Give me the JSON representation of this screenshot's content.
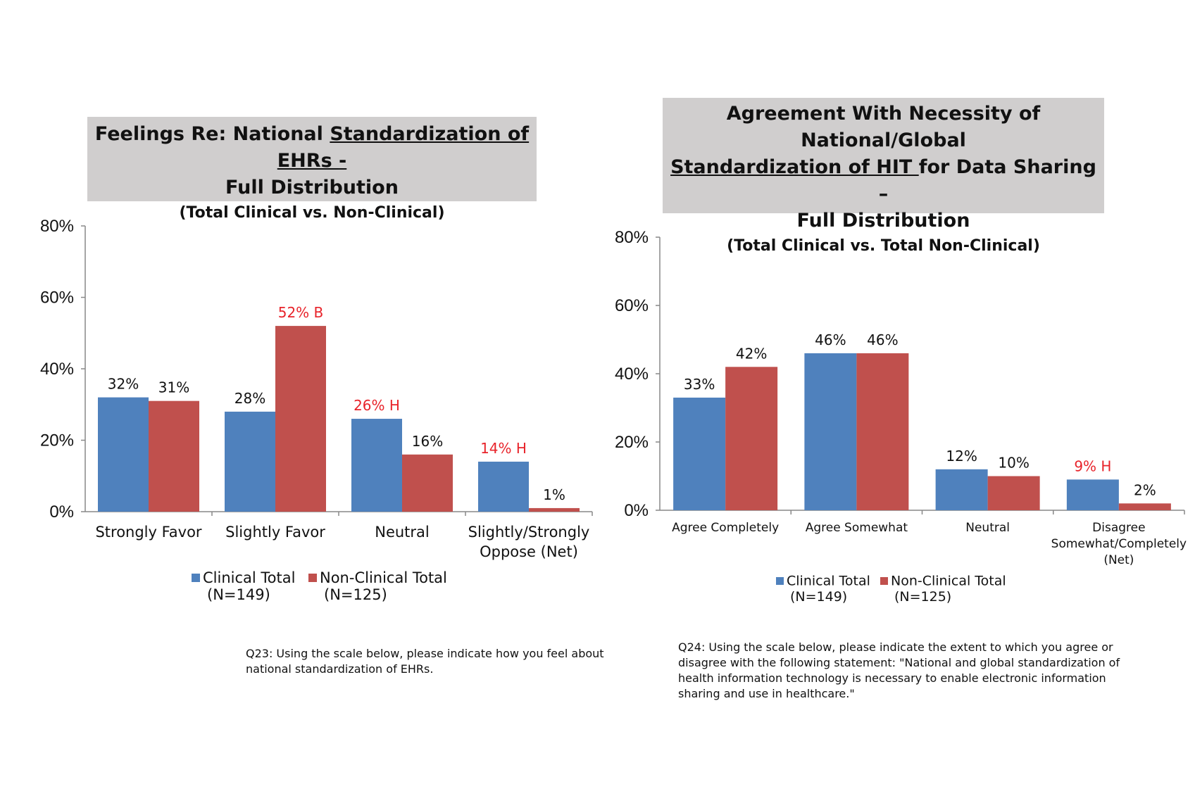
{
  "colors": {
    "clinical": "#4f81bd",
    "non_clinical": "#c0504d",
    "highlight_text": "#e8232a",
    "title_bg": "#d0cece"
  },
  "left": {
    "title": {
      "line1_pre": "Feelings Re: National ",
      "line1_u": "Standardization of EHRs ",
      "line1_post": "-",
      "line2": "Full Distribution",
      "subtitle": "(Total Clinical vs. Non-Clinical)"
    },
    "legend": {
      "clinical": {
        "name": "Clinical Total",
        "n": "(N=149)"
      },
      "non_clinical": {
        "name": "Non-Clinical Total",
        "n": "(N=125)"
      }
    },
    "note": [
      "Q23:  Using the scale below, please indicate how you feel about",
      "national standardization of EHRs."
    ]
  },
  "right": {
    "title": {
      "line1": "Agreement With Necessity of National/Global",
      "line2_u": "Standardization of HIT ",
      "line2_post": "for Data Sharing –",
      "line3": "Full Distribution",
      "subtitle": "(Total Clinical vs. Total Non-Clinical)"
    },
    "legend": {
      "clinical": {
        "name": "Clinical Total",
        "n": "(N=149)"
      },
      "non_clinical": {
        "name": "Non-Clinical Total",
        "n": "(N=125)"
      }
    },
    "note": [
      "Q24:  Using the scale below, please indicate the extent to which you agree or",
      "disagree with the following statement:  \"National and global standardization of",
      "health information technology is necessary to enable electronic information",
      "sharing and use in healthcare.\""
    ]
  },
  "chart_data": [
    {
      "type": "bar",
      "title": "Feelings Re: National Standardization of EHRs - Full Distribution (Total Clinical vs. Non-Clinical)",
      "categories": [
        [
          "Strongly Favor"
        ],
        [
          "Slightly Favor"
        ],
        [
          "Neutral"
        ],
        [
          "Slightly/Strongly",
          "Oppose (Net)"
        ]
      ],
      "series": [
        {
          "name": "Clinical Total (N=149)",
          "values": [
            32,
            28,
            26,
            14
          ],
          "labels": [
            "32%",
            "28%",
            "26% H",
            "14% H"
          ],
          "highlight": [
            false,
            false,
            true,
            true
          ]
        },
        {
          "name": "Non-Clinical Total (N=125)",
          "values": [
            31,
            52,
            16,
            1
          ],
          "labels": [
            "31%",
            "52% B",
            "16%",
            "1%"
          ],
          "highlight": [
            false,
            true,
            false,
            false
          ]
        }
      ],
      "ylim": [
        0,
        80
      ],
      "yticks": [
        "0%",
        "20%",
        "40%",
        "60%",
        "80%"
      ],
      "xlabel": "",
      "ylabel": "",
      "grid": false,
      "legend": "bottom"
    },
    {
      "type": "bar",
      "title": "Agreement With Necessity of National/Global Standardization of HIT for Data Sharing – Full Distribution (Total Clinical vs. Total Non-Clinical)",
      "categories": [
        [
          "Agree Completely"
        ],
        [
          "Agree Somewhat"
        ],
        [
          "Neutral"
        ],
        [
          "Disagree",
          "Somewhat/Completely",
          "(Net)"
        ]
      ],
      "series": [
        {
          "name": "Clinical Total (N=149)",
          "values": [
            33,
            46,
            12,
            9
          ],
          "labels": [
            "33%",
            "46%",
            "12%",
            "9% H"
          ],
          "highlight": [
            false,
            false,
            false,
            true
          ]
        },
        {
          "name": "Non-Clinical Total (N=125)",
          "values": [
            42,
            46,
            10,
            2
          ],
          "labels": [
            "42%",
            "46%",
            "10%",
            "2%"
          ],
          "highlight": [
            false,
            false,
            false,
            false
          ]
        }
      ],
      "ylim": [
        0,
        80
      ],
      "yticks": [
        "0%",
        "20%",
        "40%",
        "60%",
        "80%"
      ],
      "xlabel": "",
      "ylabel": "",
      "grid": false,
      "legend": "bottom"
    }
  ]
}
